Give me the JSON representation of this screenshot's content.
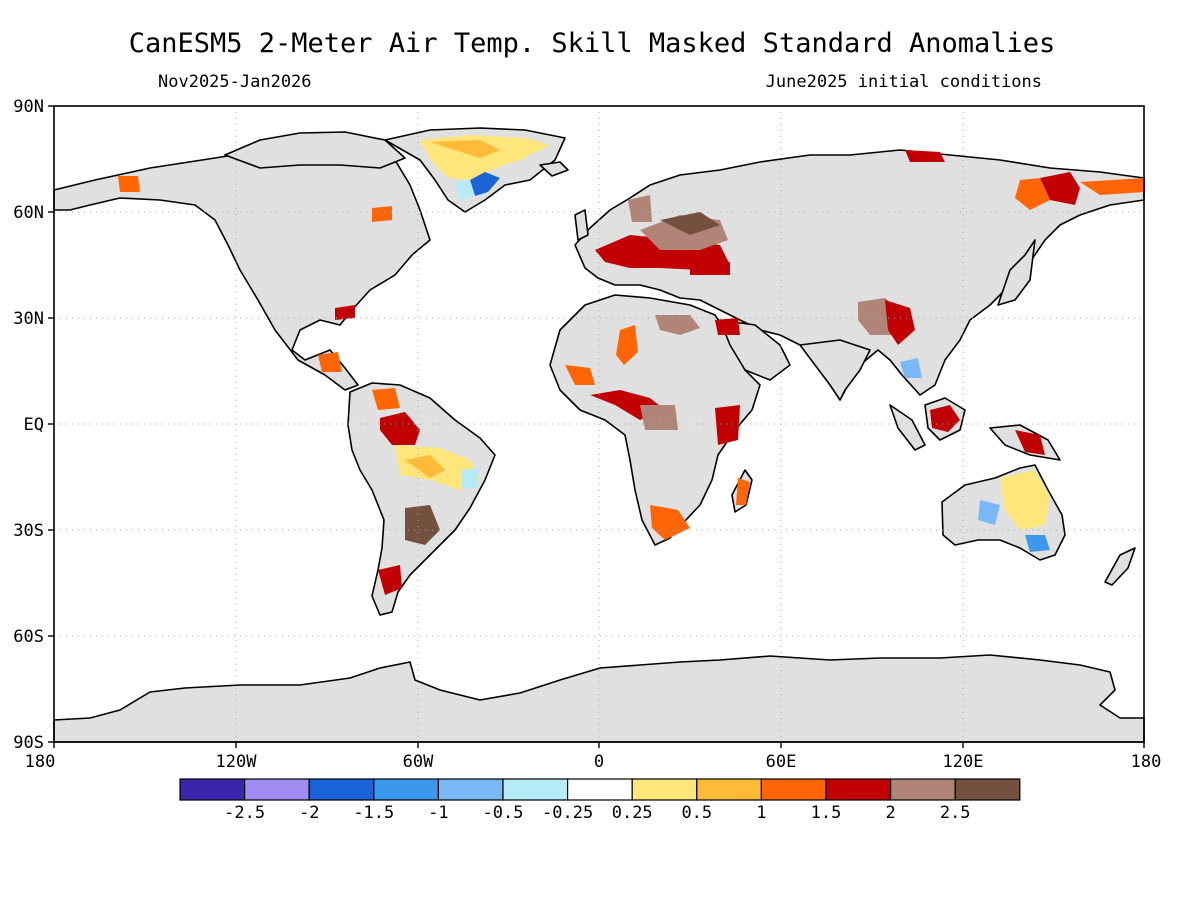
{
  "title": "CanESM5 2-Meter Air Temp. Skill Masked Standard Anomalies",
  "subtitle_left": "Nov2025-Jan2026",
  "subtitle_right": "June2025 initial conditions",
  "lat_labels": [
    "90N",
    "60N",
    "30N",
    "EQ",
    "30S",
    "60S",
    "90S"
  ],
  "lon_labels": [
    "180",
    "120W",
    "60W",
    "0",
    "60E",
    "120E",
    "180"
  ],
  "colorbar": {
    "colors": [
      "#3a25ad",
      "#a08cf2",
      "#1a64d8",
      "#3b98ec",
      "#7ab8f5",
      "#b5ecf7",
      "#ffffff",
      "#ffe57a",
      "#ffba38",
      "#ff6405",
      "#c20004",
      "#b08578",
      "#74513f"
    ],
    "labels": [
      "-2.5",
      "-2",
      "-1.5",
      "-1",
      "-0.5",
      "-0.25",
      "0.25",
      "0.5",
      "1",
      "1.5",
      "2",
      "2.5"
    ]
  },
  "map_colors": {
    "land": "#e0e0e0",
    "ocean": "#ffffff",
    "coast": "#000000",
    "grid": "#a8a8a8"
  }
}
